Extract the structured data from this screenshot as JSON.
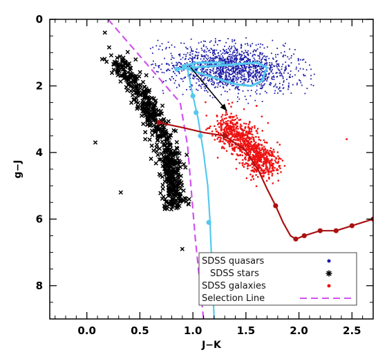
{
  "chart_data": {
    "type": "scatter",
    "xlabel": "J−K",
    "ylabel": "g−J",
    "xlim": [
      -0.35,
      2.7
    ],
    "ylim": [
      9,
      0
    ],
    "y_inverted": true,
    "xticks": [
      "0.0",
      "0.5",
      "1.0",
      "1.5",
      "2.0",
      "2.5"
    ],
    "xtick_values": [
      0.0,
      0.5,
      1.0,
      1.5,
      2.0,
      2.5
    ],
    "yticks": [
      "0",
      "2",
      "4",
      "6",
      "8"
    ],
    "ytick_values": [
      0,
      2,
      4,
      6,
      8
    ],
    "legend_position": "bottom-right",
    "legend": [
      {
        "label": "SDSS quasars",
        "marker": "dot",
        "color": "#1a1aa6"
      },
      {
        "label": "SDSS stars",
        "marker": "asterisk",
        "color": "#000000"
      },
      {
        "label": "SDSS galaxies",
        "marker": "dot",
        "color": "#ee1111"
      },
      {
        "label": "Selection Line",
        "marker": "dashed-line",
        "color": "#d050f0"
      }
    ],
    "colors": {
      "quasars": "#1a1aa6",
      "stars": "#000000",
      "galaxies": "#ee1111",
      "selection_line": "#d050f0",
      "quasar_track": "#55c8ee",
      "star_track": "#55c8ee",
      "galaxy_track": "#aa1111"
    },
    "series": [
      {
        "name": "SDSS quasars",
        "kind": "scatter-cloud",
        "approx_count": 1500,
        "x_range": [
          0.6,
          2.15
        ],
        "y_range": [
          0.5,
          2.6
        ],
        "center": [
          1.35,
          1.45
        ]
      },
      {
        "name": "SDSS stars",
        "kind": "scatter-cloud",
        "approx_count": 600,
        "ridge": [
          [
            0.25,
            1.1
          ],
          [
            0.4,
            1.7
          ],
          [
            0.55,
            2.5
          ],
          [
            0.68,
            3.3
          ],
          [
            0.78,
            4.1
          ],
          [
            0.8,
            4.8
          ],
          [
            0.83,
            5.6
          ]
        ],
        "outliers": [
          [
            0.17,
            0.4
          ],
          [
            0.08,
            3.7
          ],
          [
            0.32,
            5.2
          ],
          [
            0.9,
            6.9
          ]
        ]
      },
      {
        "name": "SDSS galaxies",
        "kind": "scatter-cloud",
        "approx_count": 900,
        "ridge": [
          [
            1.3,
            3.1
          ],
          [
            1.45,
            3.6
          ],
          [
            1.6,
            4.1
          ],
          [
            1.72,
            4.5
          ]
        ],
        "outliers": [
          [
            2.45,
            3.6
          ],
          [
            1.6,
            2.6
          ]
        ]
      },
      {
        "name": "Selection Line",
        "kind": "dashed-line",
        "points": [
          [
            0.2,
            0.0
          ],
          [
            0.88,
            2.5
          ],
          [
            0.95,
            3.8
          ],
          [
            1.02,
            6.5
          ],
          [
            1.1,
            9.0
          ]
        ]
      },
      {
        "kind": "track",
        "color": "#55c8ee",
        "points": [
          [
            0.85,
            1.5
          ],
          [
            1.0,
            1.45
          ],
          [
            1.2,
            1.4
          ],
          [
            1.4,
            1.35
          ],
          [
            1.6,
            1.3
          ],
          [
            1.7,
            1.45
          ],
          [
            1.65,
            1.85
          ],
          [
            1.55,
            2.0
          ],
          [
            1.4,
            1.95
          ],
          [
            1.2,
            1.75
          ],
          [
            1.0,
            1.55
          ],
          [
            0.9,
            1.4
          ],
          [
            1.05,
            1.3
          ],
          [
            1.3,
            1.3
          ]
        ],
        "markers": [
          [
            0.85,
            1.5
          ],
          [
            1.0,
            1.45
          ]
        ]
      },
      {
        "kind": "track",
        "color": "#55c8ee",
        "points": [
          [
            0.95,
            1.5
          ],
          [
            1.0,
            2.3
          ],
          [
            1.05,
            3.0
          ],
          [
            1.1,
            4.0
          ],
          [
            1.14,
            5.0
          ],
          [
            1.16,
            6.0
          ],
          [
            1.18,
            7.5
          ],
          [
            1.2,
            9.0
          ]
        ],
        "markers": [
          [
            1.0,
            2.3
          ],
          [
            1.03,
            2.8
          ],
          [
            1.07,
            3.5
          ],
          [
            1.15,
            6.1
          ]
        ]
      },
      {
        "kind": "track",
        "color": "#aa1111",
        "points": [
          [
            0.68,
            3.1
          ],
          [
            0.9,
            3.25
          ],
          [
            1.1,
            3.4
          ],
          [
            1.3,
            3.5
          ],
          [
            1.5,
            3.95
          ],
          [
            1.62,
            4.55
          ],
          [
            1.7,
            5.1
          ],
          [
            1.78,
            5.6
          ],
          [
            1.85,
            6.1
          ],
          [
            1.92,
            6.5
          ],
          [
            1.97,
            6.6
          ],
          [
            2.05,
            6.5
          ],
          [
            2.2,
            6.35
          ],
          [
            2.35,
            6.35
          ],
          [
            2.5,
            6.2
          ],
          [
            2.7,
            6.0
          ]
        ],
        "markers": [
          [
            0.68,
            3.1
          ],
          [
            1.3,
            3.5
          ],
          [
            1.78,
            5.6
          ],
          [
            1.97,
            6.6
          ],
          [
            2.05,
            6.5
          ],
          [
            2.2,
            6.35
          ],
          [
            2.35,
            6.35
          ],
          [
            2.5,
            6.2
          ],
          [
            2.7,
            6.0
          ]
        ]
      },
      {
        "kind": "arrow",
        "color": "#000000",
        "from": [
          0.98,
          1.45
        ],
        "to": [
          1.32,
          2.75
        ]
      }
    ]
  }
}
